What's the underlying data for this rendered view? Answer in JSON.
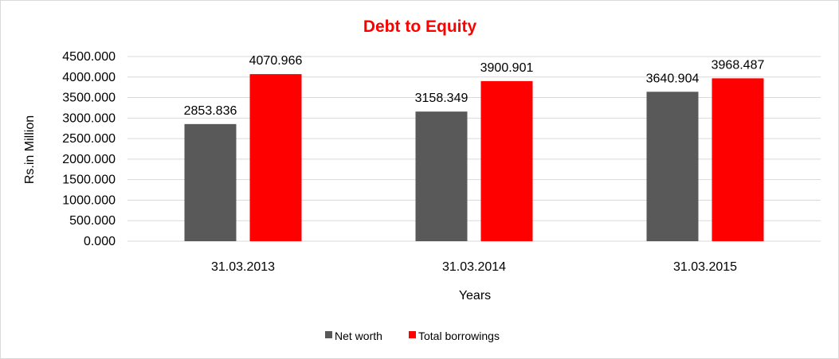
{
  "chart_data": {
    "type": "bar",
    "title": "Debt to Equity",
    "title_color": "#ff0000",
    "xlabel": "Years",
    "ylabel": "Rs.in Million",
    "categories": [
      "31.03.2013",
      "31.03.2014",
      "31.03.2015"
    ],
    "series": [
      {
        "name": "Net worth",
        "color": "#595959",
        "values": [
          2853.836,
          3158.349,
          3640.904
        ]
      },
      {
        "name": "Total borrowings",
        "color": "#ff0000",
        "values": [
          4070.966,
          3900.901,
          3968.487
        ]
      }
    ],
    "ylim": [
      0,
      4500
    ],
    "yticks": [
      0,
      500,
      1000,
      1500,
      2000,
      2500,
      3000,
      3500,
      4000,
      4500
    ],
    "ytick_labels": [
      "0.000",
      "500.000",
      "1000.000",
      "1500.000",
      "2000.000",
      "2500.000",
      "3000.000",
      "3500.000",
      "4000.000",
      "4500.000"
    ],
    "data_labels": [
      [
        "2853.836",
        "3158.349",
        "3640.904"
      ],
      [
        "4070.966",
        "3900.901",
        "3968.487"
      ]
    ],
    "grid": true,
    "legend": "bottom"
  }
}
